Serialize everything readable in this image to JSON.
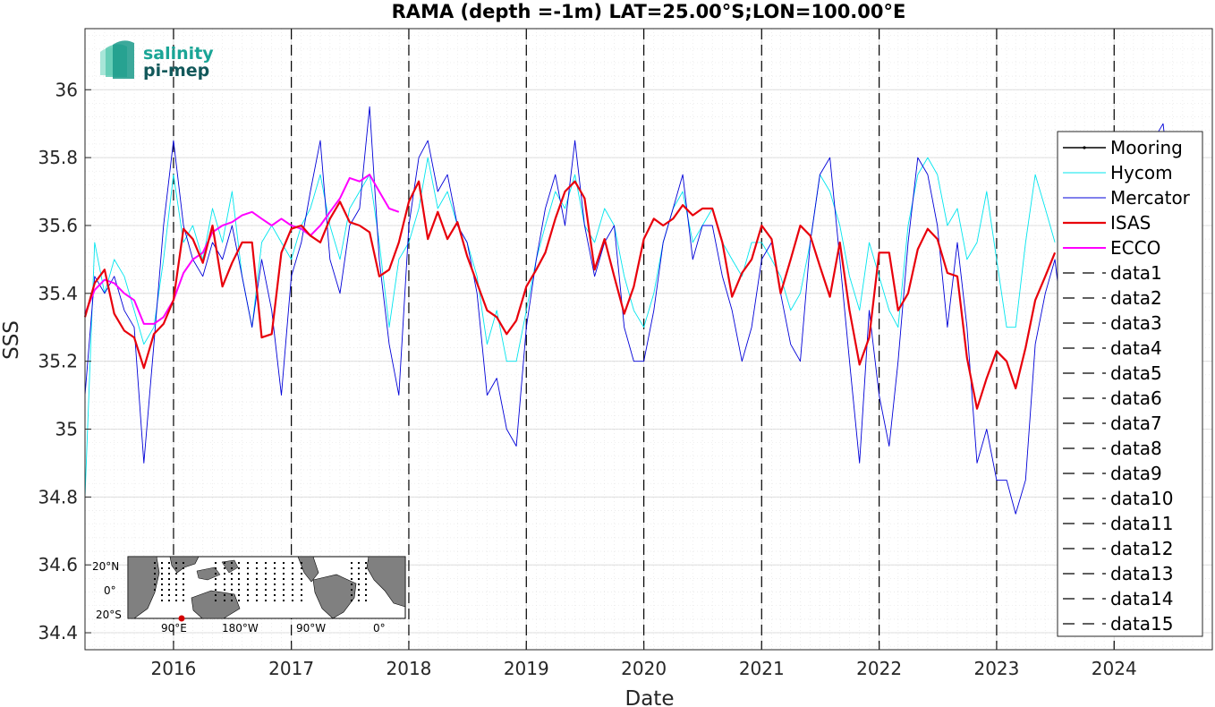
{
  "chart_data": {
    "type": "line",
    "title": "RAMA (depth =-1m) LAT=25.00°S;LON=100.00°E",
    "xlabel": "Date",
    "ylabel": "SSS",
    "xlim": [
      "2015-04-01",
      "2024-11-01"
    ],
    "ylim": [
      34.35,
      36.18
    ],
    "x_ticks": [
      "2016",
      "2017",
      "2018",
      "2019",
      "2020",
      "2021",
      "2022",
      "2023",
      "2024"
    ],
    "y_ticks": [
      34.4,
      34.6,
      34.8,
      35,
      35.2,
      35.4,
      35.6,
      35.8,
      36
    ],
    "y_tick_labels": [
      "34.4",
      "34.6",
      "34.8",
      "35",
      "35.2",
      "35.4",
      "35.6",
      "35.8",
      "36"
    ],
    "grid": true,
    "legend_position": "right",
    "vertical_lines": [
      "2016-01-01",
      "2017-01-01",
      "2018-01-01",
      "2019-01-01",
      "2020-01-01",
      "2021-01-01",
      "2022-01-01",
      "2023-01-01",
      "2024-01-01"
    ],
    "series": [
      {
        "name": "Mooring",
        "color": "#000000",
        "style": "solid-dot",
        "x": [],
        "y": []
      },
      {
        "name": "Hycom",
        "color": "#00e5ee",
        "style": "solid-thin",
        "x": [
          "2015-04-01",
          "2015-05-01",
          "2015-06-01",
          "2015-07-01",
          "2015-08-01",
          "2015-09-01",
          "2015-10-01",
          "2015-11-01",
          "2015-12-01",
          "2016-01-01",
          "2016-02-01",
          "2016-03-01",
          "2016-04-01",
          "2016-05-01",
          "2016-06-01",
          "2016-07-01",
          "2016-08-01",
          "2016-09-01",
          "2016-10-01",
          "2016-11-01",
          "2016-12-01",
          "2017-01-01",
          "2017-02-01",
          "2017-03-01",
          "2017-04-01",
          "2017-05-01",
          "2017-06-01",
          "2017-07-01",
          "2017-08-01",
          "2017-09-01",
          "2017-10-01",
          "2017-11-01",
          "2017-12-01",
          "2018-01-01",
          "2018-02-01",
          "2018-03-01",
          "2018-04-01",
          "2018-05-01",
          "2018-06-01",
          "2018-07-01",
          "2018-08-01",
          "2018-09-01",
          "2018-10-01",
          "2018-11-01",
          "2018-12-01",
          "2019-01-01",
          "2019-02-01",
          "2019-03-01",
          "2019-04-01",
          "2019-05-01",
          "2019-06-01",
          "2019-07-01",
          "2019-08-01",
          "2019-09-01",
          "2019-10-01",
          "2019-11-01",
          "2019-12-01",
          "2020-01-01",
          "2020-02-01",
          "2020-03-01",
          "2020-04-01",
          "2020-05-01",
          "2020-06-01",
          "2020-07-01",
          "2020-08-01",
          "2020-09-01",
          "2020-10-01",
          "2020-11-01",
          "2020-12-01",
          "2021-01-01",
          "2021-02-01",
          "2021-03-01",
          "2021-04-01",
          "2021-05-01",
          "2021-06-01",
          "2021-07-01",
          "2021-08-01",
          "2021-09-01",
          "2021-10-01",
          "2021-11-01",
          "2021-12-01",
          "2022-01-01",
          "2022-02-01",
          "2022-03-01",
          "2022-04-01",
          "2022-05-01",
          "2022-06-01",
          "2022-07-01",
          "2022-08-01",
          "2022-09-01",
          "2022-10-01",
          "2022-11-01",
          "2022-12-01",
          "2023-01-01",
          "2023-02-01",
          "2023-03-01",
          "2023-04-01",
          "2023-05-01",
          "2023-06-01",
          "2023-07-01"
        ],
        "y": [
          34.8,
          35.55,
          35.4,
          35.5,
          35.45,
          35.35,
          35.25,
          35.3,
          35.5,
          35.75,
          35.55,
          35.6,
          35.5,
          35.65,
          35.55,
          35.7,
          35.45,
          35.3,
          35.55,
          35.6,
          35.55,
          35.5,
          35.6,
          35.65,
          35.75,
          35.6,
          35.5,
          35.65,
          35.7,
          35.75,
          35.55,
          35.3,
          35.5,
          35.55,
          35.65,
          35.8,
          35.65,
          35.7,
          35.6,
          35.55,
          35.45,
          35.25,
          35.35,
          35.2,
          35.2,
          35.35,
          35.5,
          35.6,
          35.7,
          35.65,
          35.75,
          35.6,
          35.55,
          35.65,
          35.6,
          35.45,
          35.35,
          35.3,
          35.4,
          35.55,
          35.65,
          35.7,
          35.55,
          35.6,
          35.65,
          35.55,
          35.5,
          35.45,
          35.55,
          35.55,
          35.5,
          35.45,
          35.35,
          35.4,
          35.55,
          35.75,
          35.7,
          35.6,
          35.45,
          35.35,
          35.55,
          35.45,
          35.35,
          35.3,
          35.6,
          35.75,
          35.8,
          35.75,
          35.6,
          35.65,
          35.5,
          35.55,
          35.7,
          35.5,
          35.3,
          35.3,
          35.55,
          35.75,
          35.65,
          35.55
        ]
      },
      {
        "name": "Mercator",
        "color": "#0000d8",
        "style": "solid-thin",
        "x": [
          "2015-04-01",
          "2015-05-01",
          "2015-06-01",
          "2015-07-01",
          "2015-08-01",
          "2015-09-01",
          "2015-10-01",
          "2015-11-01",
          "2015-12-01",
          "2016-01-01",
          "2016-02-01",
          "2016-03-01",
          "2016-04-01",
          "2016-05-01",
          "2016-06-01",
          "2016-07-01",
          "2016-08-01",
          "2016-09-01",
          "2016-10-01",
          "2016-11-01",
          "2016-12-01",
          "2017-01-01",
          "2017-02-01",
          "2017-03-01",
          "2017-04-01",
          "2017-05-01",
          "2017-06-01",
          "2017-07-01",
          "2017-08-01",
          "2017-09-01",
          "2017-10-01",
          "2017-11-01",
          "2017-12-01",
          "2018-01-01",
          "2018-02-01",
          "2018-03-01",
          "2018-04-01",
          "2018-05-01",
          "2018-06-01",
          "2018-07-01",
          "2018-08-01",
          "2018-09-01",
          "2018-10-01",
          "2018-11-01",
          "2018-12-01",
          "2019-01-01",
          "2019-02-01",
          "2019-03-01",
          "2019-04-01",
          "2019-05-01",
          "2019-06-01",
          "2019-07-01",
          "2019-08-01",
          "2019-09-01",
          "2019-10-01",
          "2019-11-01",
          "2019-12-01",
          "2020-01-01",
          "2020-02-01",
          "2020-03-01",
          "2020-04-01",
          "2020-05-01",
          "2020-06-01",
          "2020-07-01",
          "2020-08-01",
          "2020-09-01",
          "2020-10-01",
          "2020-11-01",
          "2020-12-01",
          "2021-01-01",
          "2021-02-01",
          "2021-03-01",
          "2021-04-01",
          "2021-05-01",
          "2021-06-01",
          "2021-07-01",
          "2021-08-01",
          "2021-09-01",
          "2021-10-01",
          "2021-11-01",
          "2021-12-01",
          "2022-01-01",
          "2022-02-01",
          "2022-03-01",
          "2022-04-01",
          "2022-05-01",
          "2022-06-01",
          "2022-07-01",
          "2022-08-01",
          "2022-09-01",
          "2022-10-01",
          "2022-11-01",
          "2022-12-01",
          "2023-01-01",
          "2023-02-01",
          "2023-03-01",
          "2023-04-01",
          "2023-05-01",
          "2023-06-01",
          "2023-07-01",
          "2023-08-01",
          "2023-09-01",
          "2023-10-01",
          "2023-11-01",
          "2023-12-01",
          "2024-01-01",
          "2024-02-01",
          "2024-03-01",
          "2024-04-01",
          "2024-05-01",
          "2024-06-01",
          "2024-07-01",
          "2024-08-01",
          "2024-09-01",
          "2024-10-01"
        ],
        "y": [
          35.1,
          35.45,
          35.4,
          35.45,
          35.35,
          35.3,
          34.9,
          35.25,
          35.6,
          35.85,
          35.6,
          35.5,
          35.45,
          35.55,
          35.5,
          35.6,
          35.45,
          35.3,
          35.5,
          35.35,
          35.1,
          35.45,
          35.55,
          35.7,
          35.85,
          35.5,
          35.4,
          35.6,
          35.65,
          35.95,
          35.5,
          35.25,
          35.1,
          35.6,
          35.8,
          35.85,
          35.7,
          35.75,
          35.6,
          35.55,
          35.4,
          35.1,
          35.15,
          35.0,
          34.95,
          35.3,
          35.5,
          35.65,
          35.75,
          35.6,
          35.85,
          35.6,
          35.45,
          35.55,
          35.6,
          35.3,
          35.2,
          35.2,
          35.35,
          35.55,
          35.65,
          35.75,
          35.5,
          35.6,
          35.6,
          35.45,
          35.35,
          35.2,
          35.3,
          35.5,
          35.55,
          35.4,
          35.25,
          35.2,
          35.55,
          35.75,
          35.8,
          35.5,
          35.2,
          34.9,
          35.35,
          35.1,
          34.95,
          35.2,
          35.55,
          35.8,
          35.75,
          35.6,
          35.3,
          35.55,
          35.3,
          34.9,
          35.0,
          34.85,
          34.85,
          34.75,
          34.85,
          35.25,
          35.4,
          35.5,
          35.25,
          35.5,
          35.6,
          35.75,
          35.5,
          35.6,
          35.55,
          35.65,
          35.75,
          35.85,
          35.9,
          35.65,
          35.55,
          35.6,
          35.5
        ]
      },
      {
        "name": "ISAS",
        "color": "#e8000b",
        "style": "solid-thick",
        "x": [
          "2015-04-01",
          "2015-05-01",
          "2015-06-01",
          "2015-07-01",
          "2015-08-01",
          "2015-09-01",
          "2015-10-01",
          "2015-11-01",
          "2015-12-01",
          "2016-01-01",
          "2016-02-01",
          "2016-03-01",
          "2016-04-01",
          "2016-05-01",
          "2016-06-01",
          "2016-07-01",
          "2016-08-01",
          "2016-09-01",
          "2016-10-01",
          "2016-11-01",
          "2016-12-01",
          "2017-01-01",
          "2017-02-01",
          "2017-03-01",
          "2017-04-01",
          "2017-05-01",
          "2017-06-01",
          "2017-07-01",
          "2017-08-01",
          "2017-09-01",
          "2017-10-01",
          "2017-11-01",
          "2017-12-01",
          "2018-01-01",
          "2018-02-01",
          "2018-03-01",
          "2018-04-01",
          "2018-05-01",
          "2018-06-01",
          "2018-07-01",
          "2018-08-01",
          "2018-09-01",
          "2018-10-01",
          "2018-11-01",
          "2018-12-01",
          "2019-01-01",
          "2019-02-01",
          "2019-03-01",
          "2019-04-01",
          "2019-05-01",
          "2019-06-01",
          "2019-07-01",
          "2019-08-01",
          "2019-09-01",
          "2019-10-01",
          "2019-11-01",
          "2019-12-01",
          "2020-01-01",
          "2020-02-01",
          "2020-03-01",
          "2020-04-01",
          "2020-05-01",
          "2020-06-01",
          "2020-07-01",
          "2020-08-01",
          "2020-09-01",
          "2020-10-01",
          "2020-11-01",
          "2020-12-01",
          "2021-01-01",
          "2021-02-01",
          "2021-03-01",
          "2021-04-01",
          "2021-05-01",
          "2021-06-01",
          "2021-07-01",
          "2021-08-01",
          "2021-09-01",
          "2021-10-01",
          "2021-11-01",
          "2021-12-01",
          "2022-01-01",
          "2022-02-01",
          "2022-03-01",
          "2022-04-01",
          "2022-05-01",
          "2022-06-01",
          "2022-07-01",
          "2022-08-01",
          "2022-09-01",
          "2022-10-01",
          "2022-11-01",
          "2022-12-01",
          "2023-01-01",
          "2023-02-01",
          "2023-03-01",
          "2023-04-01",
          "2023-05-01",
          "2023-06-01",
          "2023-07-01"
        ],
        "y": [
          35.33,
          35.43,
          35.47,
          35.34,
          35.29,
          35.27,
          35.18,
          35.28,
          35.31,
          35.38,
          35.59,
          35.56,
          35.49,
          35.6,
          35.42,
          35.49,
          35.55,
          35.55,
          35.27,
          35.28,
          35.52,
          35.59,
          35.6,
          35.57,
          35.55,
          35.62,
          35.67,
          35.61,
          35.6,
          35.58,
          35.45,
          35.47,
          35.55,
          35.67,
          35.73,
          35.56,
          35.64,
          35.56,
          35.61,
          35.51,
          35.43,
          35.35,
          35.33,
          35.28,
          35.32,
          35.42,
          35.47,
          35.52,
          35.62,
          35.7,
          35.73,
          35.68,
          35.47,
          35.56,
          35.45,
          35.34,
          35.42,
          35.56,
          35.62,
          35.6,
          35.62,
          35.66,
          35.63,
          35.65,
          35.65,
          35.55,
          35.39,
          35.46,
          35.5,
          35.6,
          35.56,
          35.4,
          35.5,
          35.6,
          35.57,
          35.48,
          35.39,
          35.55,
          35.35,
          35.19,
          35.27,
          35.52,
          35.52,
          35.35,
          35.4,
          35.53,
          35.59,
          35.56,
          35.46,
          35.45,
          35.21,
          35.06,
          35.15,
          35.23,
          35.2,
          35.12,
          35.24,
          35.38,
          35.45,
          35.52
        ]
      },
      {
        "name": "ECCO",
        "color": "#ff00ff",
        "style": "solid-medium",
        "x": [
          "2015-04-01",
          "2015-05-01",
          "2015-06-01",
          "2015-07-01",
          "2015-08-01",
          "2015-09-01",
          "2015-10-01",
          "2015-11-01",
          "2015-12-01",
          "2016-01-01",
          "2016-02-01",
          "2016-03-01",
          "2016-04-01",
          "2016-05-01",
          "2016-06-01",
          "2016-07-01",
          "2016-08-01",
          "2016-09-01",
          "2016-10-01",
          "2016-11-01",
          "2016-12-01",
          "2017-01-01",
          "2017-02-01",
          "2017-03-01",
          "2017-04-01",
          "2017-05-01",
          "2017-06-01",
          "2017-07-01",
          "2017-08-01",
          "2017-09-01",
          "2017-10-01",
          "2017-11-01",
          "2017-12-01"
        ],
        "y": [
          35.34,
          35.41,
          35.44,
          35.43,
          35.4,
          35.38,
          35.31,
          35.31,
          35.33,
          35.38,
          35.46,
          35.5,
          35.52,
          35.58,
          35.6,
          35.61,
          35.63,
          35.64,
          35.62,
          35.6,
          35.62,
          35.6,
          35.59,
          35.57,
          35.6,
          35.64,
          35.68,
          35.74,
          35.73,
          35.75,
          35.7,
          35.65,
          35.64
        ]
      }
    ],
    "legend_extra_entries": [
      "data1",
      "data2",
      "data3",
      "data4",
      "data5",
      "data6",
      "data7",
      "data8",
      "data9",
      "data10",
      "data11",
      "data12",
      "data13",
      "data14",
      "data15"
    ],
    "inset_map": {
      "lat_labels": [
        "20°N",
        "0°",
        "20°S"
      ],
      "lon_labels": [
        "90°E",
        "180°W",
        "90°W",
        "0°"
      ],
      "marker_color": "#d40000"
    }
  },
  "logo": {
    "line1": "salinity",
    "line2": "pi-mep"
  }
}
